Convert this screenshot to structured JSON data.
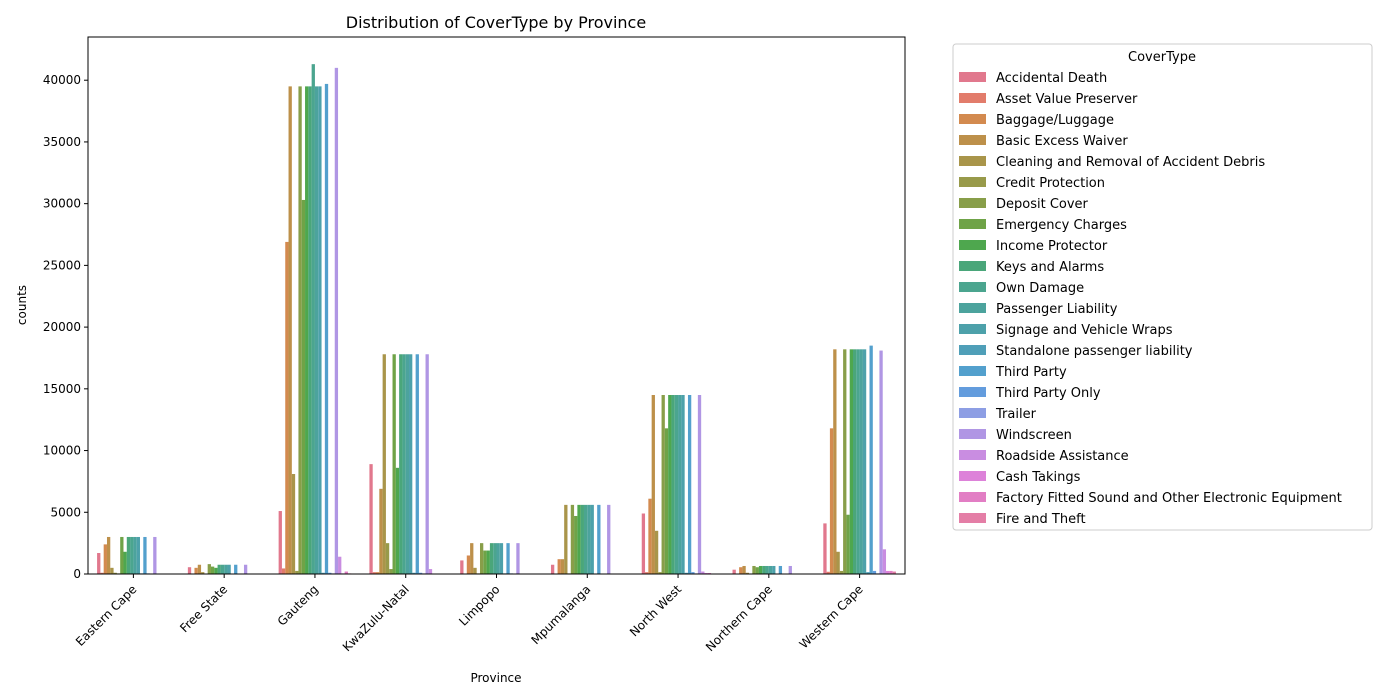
{
  "chart_data": {
    "type": "bar",
    "title": "Distribution of CoverType by Province",
    "xlabel": "Province",
    "ylabel": "counts",
    "ylim": [
      0,
      43500
    ],
    "yticks": [
      0,
      5000,
      10000,
      15000,
      20000,
      25000,
      30000,
      35000,
      40000
    ],
    "grid": false,
    "legend_title": "CoverType",
    "legend_placement": "outside-right",
    "categories": [
      "Eastern Cape",
      "Free State",
      "Gauteng",
      "KwaZulu-Natal",
      "Limpopo",
      "Mpumalanga",
      "North West",
      "Northern Cape",
      "Western Cape"
    ],
    "series": [
      {
        "name": "Accidental Death",
        "color": "#e1788d",
        "values": [
          1700,
          550,
          5100,
          8900,
          1100,
          750,
          4900,
          350,
          4100
        ]
      },
      {
        "name": "Asset Value Preserver",
        "color": "#e27c6b",
        "values": [
          100,
          30,
          450,
          150,
          40,
          40,
          150,
          20,
          180
        ]
      },
      {
        "name": "Baggage/Luggage",
        "color": "#d38a4f",
        "values": [
          2400,
          500,
          26900,
          150,
          1500,
          1200,
          6100,
          550,
          11800
        ]
      },
      {
        "name": "Basic Excess Waiver",
        "color": "#bd904a",
        "values": [
          3000,
          750,
          39500,
          6900,
          2500,
          1200,
          14500,
          650,
          18200
        ]
      },
      {
        "name": "Cleaning and Removal of Accident Debris",
        "color": "#a9954a",
        "values": [
          500,
          150,
          8100,
          17800,
          500,
          5600,
          3500,
          100,
          1800
        ]
      },
      {
        "name": "Credit Protection",
        "color": "#989a4a",
        "values": [
          100,
          20,
          250,
          2500,
          50,
          50,
          150,
          20,
          250
        ]
      },
      {
        "name": "Deposit Cover",
        "color": "#889e49",
        "values": [
          50,
          800,
          39500,
          400,
          2500,
          5600,
          14500,
          650,
          18200
        ]
      },
      {
        "name": "Emergency Charges",
        "color": "#6fa347",
        "values": [
          3000,
          600,
          30300,
          17800,
          1900,
          4700,
          11800,
          550,
          4800
        ]
      },
      {
        "name": "Income Protector",
        "color": "#4ea74e",
        "values": [
          1800,
          500,
          39500,
          8600,
          1900,
          5600,
          14500,
          650,
          18200
        ]
      },
      {
        "name": "Keys and Alarms",
        "color": "#4aa67a",
        "values": [
          3000,
          750,
          39500,
          17800,
          2500,
          5600,
          14500,
          650,
          18200
        ]
      },
      {
        "name": "Own Damage",
        "color": "#4ba58f",
        "values": [
          3000,
          750,
          41300,
          17800,
          2500,
          5600,
          14500,
          650,
          18200
        ]
      },
      {
        "name": "Passenger Liability",
        "color": "#4ca39d",
        "values": [
          3000,
          750,
          39500,
          17800,
          2500,
          5600,
          14500,
          650,
          18200
        ]
      },
      {
        "name": "Signage and Vehicle Wraps",
        "color": "#4da1aa",
        "values": [
          3000,
          750,
          39500,
          17800,
          2500,
          5600,
          14500,
          650,
          18200
        ]
      },
      {
        "name": "Standalone passenger liability",
        "color": "#4f9fb8",
        "values": [
          50,
          20,
          100,
          100,
          50,
          30,
          100,
          20,
          150
        ]
      },
      {
        "name": "Third Party",
        "color": "#53a0cd",
        "values": [
          3000,
          750,
          39700,
          17800,
          2500,
          5600,
          14500,
          650,
          18500
        ]
      },
      {
        "name": "Third Party Only",
        "color": "#639cdd",
        "values": [
          50,
          20,
          100,
          100,
          50,
          30,
          150,
          20,
          250
        ]
      },
      {
        "name": "Trailer",
        "color": "#8d9ee4",
        "values": [
          20,
          10,
          50,
          50,
          20,
          20,
          50,
          10,
          50
        ]
      },
      {
        "name": "Windscreen",
        "color": "#b096e4",
        "values": [
          3000,
          750,
          41000,
          17800,
          2500,
          5600,
          14500,
          650,
          18100
        ]
      },
      {
        "name": "Roadside Assistance",
        "color": "#c98de1",
        "values": [
          20,
          10,
          1400,
          400,
          20,
          20,
          200,
          10,
          2000
        ]
      },
      {
        "name": "Cash Takings",
        "color": "#dd82d9",
        "values": [
          10,
          5,
          50,
          30,
          10,
          10,
          80,
          5,
          250
        ]
      },
      {
        "name": "Factory Fitted Sound and Other Electronic Equipment",
        "color": "#e27ec4",
        "values": [
          10,
          5,
          200,
          30,
          10,
          10,
          80,
          5,
          250
        ]
      },
      {
        "name": "Fire and Theft",
        "color": "#e47ea6",
        "values": [
          10,
          5,
          50,
          20,
          10,
          10,
          30,
          5,
          200
        ]
      }
    ]
  }
}
